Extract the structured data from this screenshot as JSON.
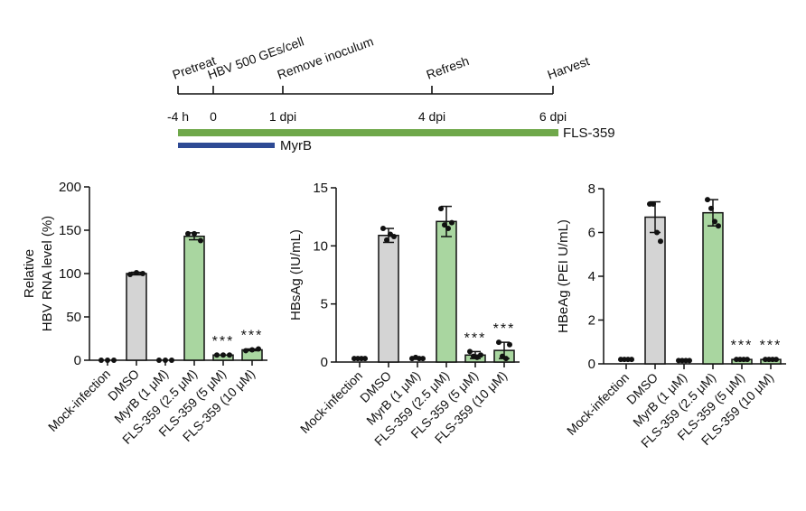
{
  "timeline": {
    "events": [
      {
        "label": "Pretreat",
        "time": "-4 h"
      },
      {
        "label": "HBV 500 GEs/cell",
        "time": "0"
      },
      {
        "label": "Remove inoculum",
        "time": "1 dpi"
      },
      {
        "label": "Refresh",
        "time": "4 dpi"
      },
      {
        "label": "Harvest",
        "time": "6 dpi"
      }
    ],
    "treatments": [
      {
        "name": "FLS-359",
        "from": "-4 h",
        "to": "6 dpi",
        "color": "#6fa84a"
      },
      {
        "name": "MyrB",
        "from": "-4 h",
        "to": "1 dpi",
        "color": "#2e4a94"
      }
    ]
  },
  "chart_data": [
    {
      "type": "bar",
      "ylabel": [
        "Relative",
        "HBV RNA level (%)"
      ],
      "categories": [
        "Mock-infection",
        "DMSO",
        "MyrB (1 μM)",
        "FLS-359 (2.5 μM)",
        "FLS-359 (5 μM)",
        "FLS-359 (10 μM)"
      ],
      "values": [
        0,
        100,
        0,
        143,
        6,
        12
      ],
      "errors": [
        0,
        1.5,
        0,
        4,
        0.5,
        1
      ],
      "points": [
        [
          0,
          0,
          0
        ],
        [
          99,
          101,
          100
        ],
        [
          0,
          0,
          0
        ],
        [
          146,
          146,
          138
        ],
        [
          6,
          6,
          6
        ],
        [
          11,
          12,
          13
        ]
      ],
      "significance": [
        "",
        "",
        "",
        "",
        "***",
        "***"
      ],
      "ylim": [
        0,
        200
      ],
      "yticks": [
        0,
        50,
        100,
        150,
        200
      ]
    },
    {
      "type": "bar",
      "ylabel": [
        "HBsAg (IU/mL)"
      ],
      "categories": [
        "Mock-infection",
        "DMSO",
        "MyrB (1 μM)",
        "FLS-359 (2.5 μM)",
        "FLS-359 (5 μM)",
        "FLS-359 (10 μM)"
      ],
      "values": [
        0.3,
        10.9,
        0.3,
        12.1,
        0.6,
        1.0
      ],
      "errors": [
        0.05,
        0.6,
        0.05,
        1.3,
        0.3,
        0.7
      ],
      "points": [
        [
          0.3,
          0.3,
          0.3,
          0.3
        ],
        [
          11.5,
          10.5,
          11,
          10.8
        ],
        [
          0.3,
          0.4,
          0.3,
          0.3
        ],
        [
          13.2,
          11.8,
          11.5,
          12.0
        ],
        [
          0.9,
          0.5,
          0.4,
          0.6
        ],
        [
          1.7,
          0.5,
          0.3,
          1.5
        ]
      ],
      "significance": [
        "",
        "",
        "",
        "",
        "***",
        "***"
      ],
      "ylim": [
        0,
        15
      ],
      "yticks": [
        0,
        5,
        10,
        15
      ]
    },
    {
      "type": "bar",
      "ylabel": [
        "HBeAg (PEI U/mL)"
      ],
      "categories": [
        "Mock-infection",
        "DMSO",
        "MyrB (1 μM)",
        "FLS-359 (2.5 μM)",
        "FLS-359 (5 μM)",
        "FLS-359 (10 μM)"
      ],
      "values": [
        0.2,
        6.7,
        0.15,
        6.9,
        0.2,
        0.2
      ],
      "errors": [
        0.02,
        0.7,
        0.02,
        0.6,
        0.02,
        0.02
      ],
      "points": [
        [
          0.2,
          0.2,
          0.2,
          0.2
        ],
        [
          7.3,
          7.3,
          6.0,
          5.6
        ],
        [
          0.15,
          0.15,
          0.15,
          0.15
        ],
        [
          7.5,
          7.1,
          6.5,
          6.3
        ],
        [
          0.2,
          0.2,
          0.2,
          0.2
        ],
        [
          0.2,
          0.2,
          0.2,
          0.2
        ]
      ],
      "significance": [
        "",
        "",
        "",
        "",
        "***",
        "***"
      ],
      "ylim": [
        0,
        8
      ],
      "yticks": [
        0,
        2,
        4,
        6,
        8
      ]
    }
  ],
  "colors": {
    "DMSO": "#d4d4d4",
    "FLS-359": "#a9d6a0",
    "bar_edge": "#111111"
  }
}
